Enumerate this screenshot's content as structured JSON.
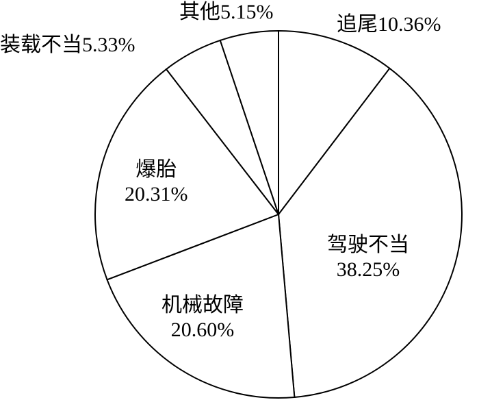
{
  "chart_data": {
    "type": "pie",
    "start_angle": "12 o'clock",
    "direction": "clockwise",
    "slices": [
      {
        "label": "追尾",
        "value": 10.36,
        "text": "10.36%"
      },
      {
        "label": "驾驶不当",
        "value": 38.25,
        "text": "38.25%"
      },
      {
        "label": "机械故障",
        "value": 20.6,
        "text": "20.60%"
      },
      {
        "label": "爆胎",
        "value": 20.31,
        "text": "20.31%"
      },
      {
        "label": "装载不当",
        "value": 5.33,
        "text": "5.33%"
      },
      {
        "label": "其他",
        "value": 5.15,
        "text": "5.15%"
      }
    ],
    "colors": {
      "fill": "#ffffff",
      "stroke": "#000000"
    }
  }
}
